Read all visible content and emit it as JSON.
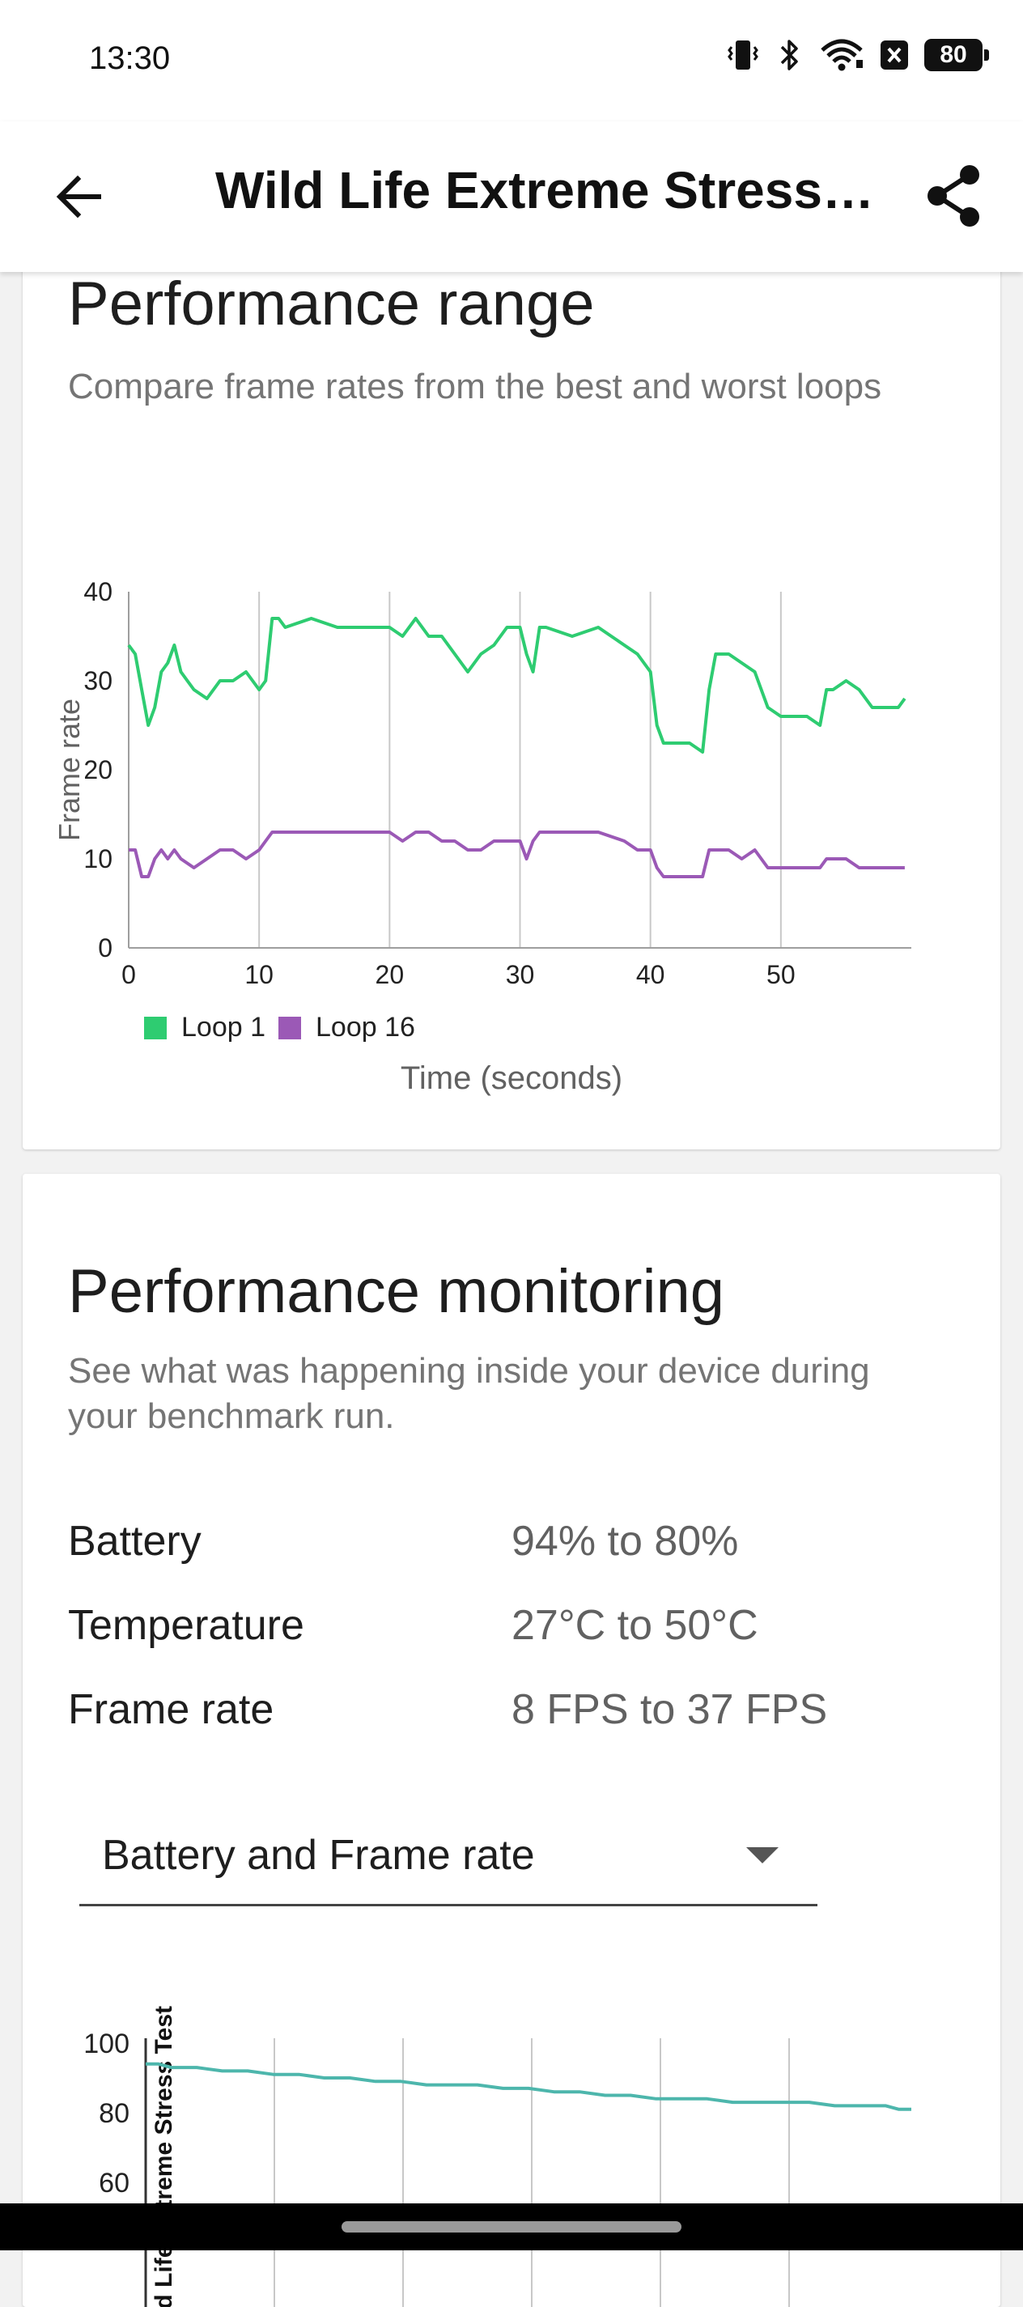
{
  "status_bar": {
    "time": "13:30",
    "battery": "80"
  },
  "app_bar": {
    "title": "Wild Life Extreme Stress Test"
  },
  "performance_range": {
    "heading": "Performance range",
    "subtitle": "Compare frame rates from the best and worst loops",
    "chart_data": {
      "type": "line",
      "ylabel": "Frame rate",
      "xlabel": "Time (seconds)",
      "xlim": [
        0,
        60
      ],
      "ylim": [
        0,
        40
      ],
      "x_ticks": [
        "0",
        "10",
        "20",
        "30",
        "40",
        "50"
      ],
      "y_ticks": [
        "0",
        "10",
        "20",
        "30",
        "40"
      ],
      "legend": "bottom-left",
      "series": [
        {
          "name": "Loop 1",
          "color": "#2ecc71",
          "x": [
            0,
            0.5,
            1,
            1.5,
            2,
            2.5,
            3,
            3.5,
            4,
            4.5,
            5,
            6,
            7,
            8,
            9,
            10,
            10.5,
            11,
            11.5,
            12,
            14,
            16,
            18,
            20,
            21,
            22,
            23,
            24,
            25,
            26,
            27,
            28,
            29,
            30,
            30.5,
            31,
            31.5,
            32,
            34,
            36,
            38,
            39,
            40,
            40.5,
            41,
            42,
            43,
            44,
            44.5,
            45,
            46,
            47,
            48,
            49,
            50,
            51,
            52,
            53,
            53.5,
            54,
            55,
            56,
            57,
            58,
            59,
            59.5
          ],
          "y": [
            34,
            33,
            29,
            25,
            27,
            31,
            32,
            34,
            31,
            30,
            29,
            28,
            30,
            30,
            31,
            29,
            30,
            37,
            37,
            36,
            37,
            36,
            36,
            36,
            35,
            37,
            35,
            35,
            33,
            31,
            33,
            34,
            36,
            36,
            33,
            31,
            36,
            36,
            35,
            36,
            34,
            33,
            31,
            25,
            23,
            23,
            23,
            22,
            29,
            33,
            33,
            32,
            31,
            27,
            26,
            26,
            26,
            25,
            29,
            29,
            30,
            29,
            27,
            27,
            27,
            28
          ]
        },
        {
          "name": "Loop 16",
          "color": "#9b59b6",
          "x": [
            0,
            0.5,
            1,
            1.5,
            2,
            2.5,
            3,
            3.5,
            4,
            5,
            6,
            7,
            8,
            9,
            10,
            10.5,
            11,
            12,
            14,
            16,
            18,
            20,
            21,
            22,
            23,
            24,
            25,
            26,
            27,
            28,
            29,
            30,
            30.5,
            31,
            31.5,
            32,
            34,
            36,
            38,
            39,
            40,
            40.5,
            41,
            42,
            43,
            44,
            44.5,
            45,
            46,
            47,
            48,
            49,
            50,
            51,
            52,
            53,
            53.5,
            54,
            55,
            56,
            57,
            58,
            59,
            59.5
          ],
          "y": [
            11,
            11,
            8,
            8,
            10,
            11,
            10,
            11,
            10,
            9,
            10,
            11,
            11,
            10,
            11,
            12,
            13,
            13,
            13,
            13,
            13,
            13,
            12,
            13,
            13,
            12,
            12,
            11,
            11,
            12,
            12,
            12,
            10,
            12,
            13,
            13,
            13,
            13,
            12,
            11,
            11,
            9,
            8,
            8,
            8,
            8,
            11,
            11,
            11,
            10,
            11,
            9,
            9,
            9,
            9,
            9,
            10,
            10,
            10,
            9,
            9,
            9,
            9,
            9
          ]
        }
      ]
    }
  },
  "performance_monitoring": {
    "heading": "Performance monitoring",
    "subtitle": "See what was happening inside your device during your benchmark run.",
    "metrics": [
      {
        "label": "Battery",
        "value": "94% to 80%"
      },
      {
        "label": "Temperature",
        "value": "27°C to 50°C"
      },
      {
        "label": "Frame rate",
        "value": "8 FPS to 37 FPS"
      }
    ],
    "dropdown": {
      "value": "Battery and Frame rate"
    },
    "chart_data": {
      "type": "line",
      "ylim": [
        50,
        100
      ],
      "xlim": [
        0,
        60
      ],
      "y_ticks": [
        "100",
        "80",
        "60"
      ],
      "marker_label": "Wild Life Extreme Stress Test",
      "series": [
        {
          "color": "#4db6ac",
          "x": [
            0,
            1,
            2,
            4,
            6,
            8,
            10,
            12,
            14,
            16,
            18,
            20,
            22,
            24,
            26,
            28,
            30,
            32,
            34,
            36,
            38,
            40,
            42,
            44,
            46,
            48,
            50,
            52,
            54,
            56,
            58,
            59,
            60
          ],
          "y": [
            94,
            94,
            93,
            93,
            92,
            92,
            91,
            91,
            90,
            90,
            89,
            89,
            88,
            88,
            88,
            87,
            87,
            86,
            86,
            85,
            85,
            84,
            84,
            84,
            83,
            83,
            83,
            83,
            82,
            82,
            82,
            81,
            81
          ]
        }
      ]
    }
  }
}
